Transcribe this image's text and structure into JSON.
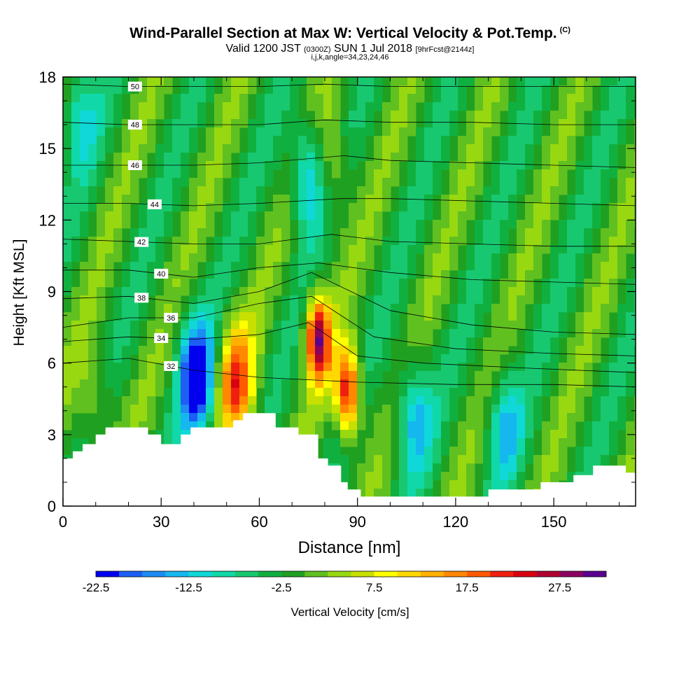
{
  "title": {
    "main": "Wind-Parallel Section at Max W: Vertical Velocity & Pot.Temp.",
    "copyright": "(C)",
    "valid_prefix": "Valid 1200 JST",
    "valid_z": "(0300Z)",
    "valid_date": "SUN 1 Jul 2018",
    "forecast": "[9hrFcst@2144z]",
    "indices": "i,j,k,angle=34,23,24,46"
  },
  "chart_data": {
    "type": "heatmap",
    "xlabel": "Distance [nm]",
    "ylabel": "Height [Kft MSL]",
    "xlim": [
      0,
      175
    ],
    "ylim": [
      0,
      18
    ],
    "x_ticks": [
      0,
      30,
      60,
      90,
      120,
      150
    ],
    "y_ticks": [
      0,
      3,
      6,
      9,
      12,
      15,
      18
    ],
    "colorbar": {
      "label": "Vertical Velocity [cm/s]",
      "levels_start": -22.5,
      "level_step": 2.5,
      "tick_labels": [
        "-22.5",
        "-12.5",
        "-2.5",
        "7.5",
        "17.5",
        "27.5"
      ],
      "colors": [
        "#0000ee",
        "#1d5ef5",
        "#1c8cf3",
        "#15b8ee",
        "#10d8d8",
        "#10d8a8",
        "#18c870",
        "#10b040",
        "#20a020",
        "#60c020",
        "#98d810",
        "#c8e000",
        "#ffff00",
        "#ffd800",
        "#ffb000",
        "#ff8800",
        "#ff5a00",
        "#f02010",
        "#d80010",
        "#b00030",
        "#8c0060",
        "#5a0090"
      ]
    },
    "series": [
      {
        "name": "updraft",
        "value": 29,
        "x": 78,
        "y": 7.0
      },
      {
        "name": "updraft",
        "value": 27,
        "x": 87,
        "y": 4.8
      },
      {
        "name": "updraft",
        "value": 20,
        "x": 53,
        "y": 5.2
      },
      {
        "name": "updraft",
        "value": 8,
        "x": 82,
        "y": 14.0
      },
      {
        "name": "updraft",
        "value": 6,
        "x": 10,
        "y": 4.3
      },
      {
        "name": "downdraft",
        "value": -22,
        "x": 41,
        "y": 5.3
      },
      {
        "name": "downdraft",
        "value": -14,
        "x": 75,
        "y": 13.8
      },
      {
        "name": "downdraft",
        "value": -12,
        "x": 107,
        "y": 3.8
      },
      {
        "name": "downdraft",
        "value": -10,
        "x": 135,
        "y": 3.4
      },
      {
        "name": "downdraft",
        "value": -9,
        "x": 5,
        "y": 16.5
      }
    ],
    "contours": [
      {
        "label": "32",
        "points": [
          [
            0,
            6.0
          ],
          [
            20,
            6.2
          ],
          [
            40,
            5.7
          ],
          [
            60,
            5.4
          ],
          [
            90,
            5.2
          ],
          [
            120,
            5.1
          ],
          [
            150,
            5.1
          ],
          [
            175,
            5.0
          ]
        ]
      },
      {
        "label": "34",
        "points": [
          [
            0,
            6.9
          ],
          [
            20,
            7.1
          ],
          [
            40,
            7.0
          ],
          [
            60,
            7.2
          ],
          [
            75,
            7.7
          ],
          [
            90,
            6.3
          ],
          [
            110,
            6.0
          ],
          [
            140,
            5.8
          ],
          [
            175,
            5.6
          ]
        ]
      },
      {
        "label": "36",
        "points": [
          [
            0,
            7.5
          ],
          [
            20,
            7.9
          ],
          [
            40,
            7.9
          ],
          [
            60,
            8.5
          ],
          [
            76,
            8.8
          ],
          [
            95,
            7.1
          ],
          [
            120,
            6.6
          ],
          [
            150,
            6.4
          ],
          [
            175,
            6.3
          ]
        ]
      },
      {
        "label": "38",
        "points": [
          [
            0,
            8.7
          ],
          [
            20,
            8.8
          ],
          [
            40,
            8.5
          ],
          [
            60,
            9.0
          ],
          [
            76,
            9.8
          ],
          [
            100,
            8.2
          ],
          [
            125,
            7.6
          ],
          [
            150,
            7.3
          ],
          [
            175,
            7.2
          ]
        ]
      },
      {
        "label": "40",
        "points": [
          [
            0,
            9.9
          ],
          [
            20,
            9.9
          ],
          [
            40,
            9.6
          ],
          [
            60,
            10.0
          ],
          [
            78,
            10.2
          ],
          [
            100,
            9.8
          ],
          [
            125,
            9.5
          ],
          [
            150,
            9.4
          ],
          [
            175,
            9.3
          ]
        ]
      },
      {
        "label": "42",
        "points": [
          [
            0,
            11.2
          ],
          [
            20,
            11.1
          ],
          [
            40,
            11.0
          ],
          [
            60,
            11.0
          ],
          [
            82,
            11.4
          ],
          [
            100,
            11.1
          ],
          [
            125,
            11.0
          ],
          [
            150,
            10.9
          ],
          [
            175,
            10.9
          ]
        ]
      },
      {
        "label": "44",
        "points": [
          [
            0,
            12.7
          ],
          [
            20,
            12.7
          ],
          [
            40,
            12.6
          ],
          [
            60,
            12.7
          ],
          [
            85,
            12.9
          ],
          [
            100,
            12.9
          ],
          [
            125,
            12.8
          ],
          [
            150,
            12.7
          ],
          [
            175,
            12.6
          ]
        ]
      },
      {
        "label": "46",
        "points": [
          [
            0,
            14.3
          ],
          [
            20,
            14.3
          ],
          [
            40,
            14.3
          ],
          [
            60,
            14.4
          ],
          [
            86,
            14.7
          ],
          [
            100,
            14.5
          ],
          [
            125,
            14.4
          ],
          [
            150,
            14.3
          ],
          [
            175,
            14.2
          ]
        ]
      },
      {
        "label": "48",
        "points": [
          [
            0,
            16.1
          ],
          [
            20,
            16.0
          ],
          [
            40,
            16.0
          ],
          [
            60,
            16.0
          ],
          [
            80,
            16.2
          ],
          [
            100,
            16.1
          ],
          [
            125,
            16.1
          ],
          [
            150,
            16.0
          ],
          [
            175,
            16.0
          ]
        ]
      },
      {
        "label": "50",
        "points": [
          [
            0,
            17.7
          ],
          [
            20,
            17.6
          ],
          [
            40,
            17.6
          ],
          [
            60,
            17.6
          ],
          [
            80,
            17.7
          ],
          [
            100,
            17.6
          ],
          [
            125,
            17.6
          ],
          [
            150,
            17.6
          ],
          [
            175,
            17.6
          ]
        ]
      }
    ],
    "terrain": [
      [
        0,
        2.0
      ],
      [
        3,
        2.0
      ],
      [
        3,
        2.3
      ],
      [
        6,
        2.3
      ],
      [
        6,
        2.6
      ],
      [
        10,
        2.6
      ],
      [
        10,
        3.0
      ],
      [
        13,
        3.0
      ],
      [
        13,
        3.3
      ],
      [
        26,
        3.3
      ],
      [
        26,
        3.0
      ],
      [
        30,
        3.0
      ],
      [
        30,
        2.6
      ],
      [
        36,
        2.6
      ],
      [
        36,
        3.0
      ],
      [
        39,
        3.0
      ],
      [
        39,
        3.3
      ],
      [
        52,
        3.3
      ],
      [
        52,
        3.6
      ],
      [
        55,
        3.6
      ],
      [
        55,
        3.9
      ],
      [
        65,
        3.9
      ],
      [
        65,
        3.3
      ],
      [
        72,
        3.3
      ],
      [
        72,
        3.0
      ],
      [
        78,
        3.0
      ],
      [
        78,
        2.0
      ],
      [
        81,
        2.0
      ],
      [
        81,
        1.7
      ],
      [
        85,
        1.7
      ],
      [
        85,
        1.0
      ],
      [
        87,
        1.0
      ],
      [
        87,
        0.7
      ],
      [
        91,
        0.7
      ],
      [
        91,
        0.4
      ],
      [
        130,
        0.4
      ],
      [
        130,
        0.7
      ],
      [
        146,
        0.7
      ],
      [
        146,
        1.0
      ],
      [
        156,
        1.0
      ],
      [
        156,
        1.3
      ],
      [
        162,
        1.3
      ],
      [
        162,
        1.7
      ],
      [
        172,
        1.7
      ],
      [
        172,
        1.4
      ],
      [
        175,
        1.4
      ]
    ]
  }
}
